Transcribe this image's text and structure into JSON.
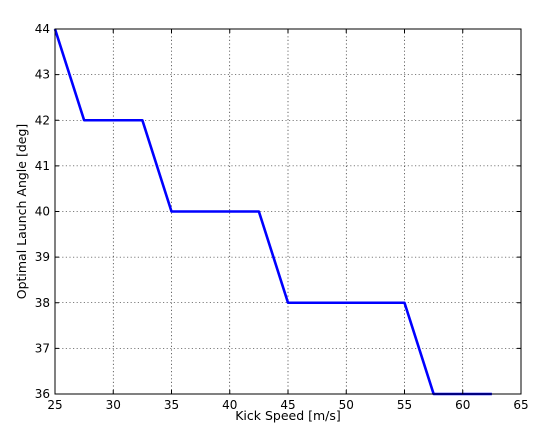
{
  "chart_data": {
    "type": "line",
    "title": "",
    "xlabel": "Kick Speed [m/s]",
    "ylabel": "Optimal Launch Angle [deg]",
    "xlim": [
      25,
      65
    ],
    "ylim": [
      36,
      44
    ],
    "x_ticks": [
      25,
      30,
      35,
      40,
      45,
      50,
      55,
      60,
      65
    ],
    "y_ticks": [
      36,
      37,
      38,
      39,
      40,
      41,
      42,
      43,
      44
    ],
    "x_tick_labels": [
      "25",
      "30",
      "35",
      "40",
      "45",
      "50",
      "55",
      "60",
      "65"
    ],
    "y_tick_labels": [
      "36",
      "37",
      "38",
      "39",
      "40",
      "41",
      "42",
      "43",
      "44"
    ],
    "grid": true,
    "series": [
      {
        "color": "#0000ff",
        "x": [
          25,
          27.5,
          32.5,
          35,
          42.5,
          45,
          55,
          57.5,
          62.5
        ],
        "y": [
          44,
          42,
          42,
          40,
          40,
          38,
          38,
          36,
          36
        ]
      }
    ]
  }
}
